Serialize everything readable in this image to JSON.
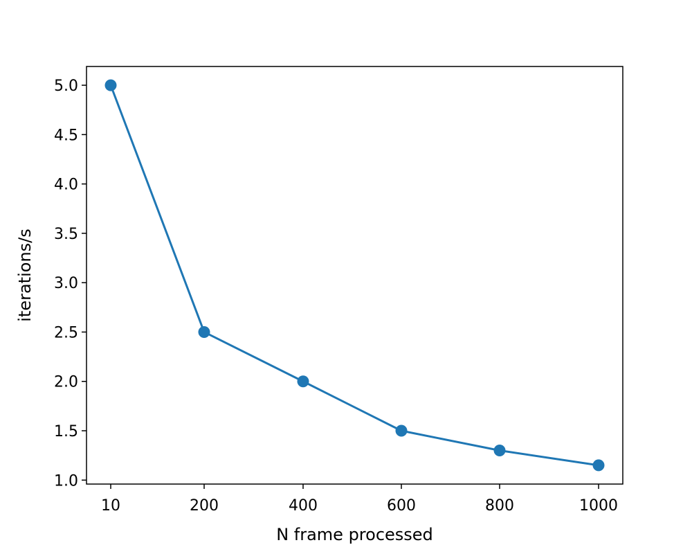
{
  "chart_data": {
    "type": "line",
    "title": "",
    "xlabel": "N frame processed",
    "ylabel": "iterations/s",
    "categories": [
      "10",
      "200",
      "400",
      "600",
      "800",
      "1000"
    ],
    "series": [
      {
        "name": "iterations/s",
        "values": [
          5.0,
          2.5,
          2.0,
          1.5,
          1.3,
          1.15
        ],
        "color": "#1f77b4",
        "marker": "circle"
      }
    ],
    "ylim": [
      0.96,
      5.19
    ],
    "yticks": [
      1.0,
      1.5,
      2.0,
      2.5,
      3.0,
      3.5,
      4.0,
      4.5,
      5.0
    ],
    "ytick_labels": [
      "1.0",
      "1.5",
      "2.0",
      "2.5",
      "3.0",
      "3.5",
      "4.0",
      "4.5",
      "5.0"
    ],
    "grid": false,
    "legend": "none"
  }
}
